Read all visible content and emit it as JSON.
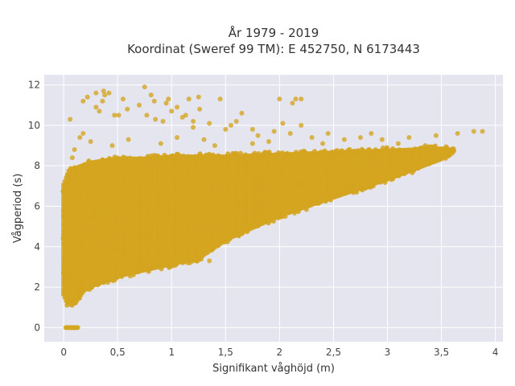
{
  "chart_data": {
    "type": "scatter",
    "title_lines": [
      "År 1979 - 2019",
      "Koordinat (Sweref 99 TM): E 452750, N 6173443"
    ],
    "xlabel": "Signifikant våghöjd (m)",
    "ylabel": "Vågperiod (s)",
    "xlim": [
      -0.18,
      4.07
    ],
    "ylim": [
      -0.7,
      12.5
    ],
    "x_ticks": [
      0,
      0.5,
      1,
      1.5,
      2,
      2.5,
      3,
      3.5,
      4
    ],
    "x_tick_labels": [
      "0",
      "0,5",
      "1",
      "1,5",
      "2",
      "2,5",
      "3",
      "3,5",
      "4"
    ],
    "y_ticks": [
      0,
      2,
      4,
      6,
      8,
      10,
      12
    ],
    "y_tick_labels": [
      "0",
      "2",
      "4",
      "6",
      "8",
      "10",
      "12"
    ],
    "grid": true,
    "marker_color": "#D4A520",
    "plot_background": "#E5E5EF",
    "grid_color": "#FFFFFF",
    "envelope_lower": [
      [
        0.0,
        1.5
      ],
      [
        0.03,
        1.1
      ],
      [
        0.1,
        1.05
      ],
      [
        0.2,
        1.8
      ],
      [
        0.35,
        2.1
      ],
      [
        0.5,
        2.4
      ],
      [
        0.75,
        2.7
      ],
      [
        1.0,
        3.0
      ],
      [
        1.25,
        3.3
      ],
      [
        1.5,
        4.2
      ],
      [
        2.0,
        5.4
      ],
      [
        2.5,
        6.3
      ],
      [
        3.0,
        7.2
      ],
      [
        3.5,
        8.2
      ],
      [
        3.62,
        8.7
      ]
    ],
    "envelope_upper": [
      [
        0.0,
        7.2
      ],
      [
        0.05,
        7.9
      ],
      [
        0.25,
        8.3
      ],
      [
        0.5,
        8.5
      ],
      [
        0.75,
        8.5
      ],
      [
        1.0,
        8.6
      ],
      [
        1.25,
        8.6
      ],
      [
        1.5,
        8.6
      ],
      [
        2.0,
        8.7
      ],
      [
        2.5,
        8.8
      ],
      [
        3.0,
        8.9
      ],
      [
        3.5,
        9.0
      ],
      [
        3.62,
        8.9
      ]
    ],
    "outliers": [
      {
        "x": 0.37,
        "y": 11.7
      },
      {
        "x": 0.3,
        "y": 11.6
      },
      {
        "x": 0.38,
        "y": 11.5
      },
      {
        "x": 0.42,
        "y": 11.6
      },
      {
        "x": 0.22,
        "y": 11.4
      },
      {
        "x": 0.36,
        "y": 11.2
      },
      {
        "x": 0.55,
        "y": 11.3
      },
      {
        "x": 0.18,
        "y": 11.2
      },
      {
        "x": 0.75,
        "y": 11.9
      },
      {
        "x": 0.81,
        "y": 11.5
      },
      {
        "x": 0.84,
        "y": 11.2
      },
      {
        "x": 0.7,
        "y": 11.0
      },
      {
        "x": 0.97,
        "y": 11.3
      },
      {
        "x": 0.95,
        "y": 11.1
      },
      {
        "x": 1.0,
        "y": 10.7
      },
      {
        "x": 1.05,
        "y": 10.9
      },
      {
        "x": 0.59,
        "y": 10.8
      },
      {
        "x": 0.51,
        "y": 10.5
      },
      {
        "x": 0.47,
        "y": 10.5
      },
      {
        "x": 0.33,
        "y": 10.7
      },
      {
        "x": 0.3,
        "y": 10.9
      },
      {
        "x": 0.06,
        "y": 10.3
      },
      {
        "x": 0.77,
        "y": 10.5
      },
      {
        "x": 0.85,
        "y": 10.3
      },
      {
        "x": 0.92,
        "y": 10.2
      },
      {
        "x": 1.1,
        "y": 10.4
      },
      {
        "x": 1.13,
        "y": 10.5
      },
      {
        "x": 1.2,
        "y": 10.2
      },
      {
        "x": 1.16,
        "y": 11.3
      },
      {
        "x": 1.25,
        "y": 11.4
      },
      {
        "x": 1.45,
        "y": 11.3
      },
      {
        "x": 1.26,
        "y": 10.8
      },
      {
        "x": 1.2,
        "y": 9.9
      },
      {
        "x": 1.35,
        "y": 10.1
      },
      {
        "x": 1.5,
        "y": 9.8
      },
      {
        "x": 1.6,
        "y": 10.2
      },
      {
        "x": 1.65,
        "y": 10.6
      },
      {
        "x": 1.55,
        "y": 10.0
      },
      {
        "x": 1.75,
        "y": 9.8
      },
      {
        "x": 1.8,
        "y": 9.5
      },
      {
        "x": 2.0,
        "y": 11.3
      },
      {
        "x": 2.15,
        "y": 11.3
      },
      {
        "x": 2.12,
        "y": 11.1
      },
      {
        "x": 2.2,
        "y": 11.3
      },
      {
        "x": 1.95,
        "y": 9.7
      },
      {
        "x": 2.03,
        "y": 10.1
      },
      {
        "x": 2.2,
        "y": 10.0
      },
      {
        "x": 2.1,
        "y": 9.6
      },
      {
        "x": 2.3,
        "y": 9.4
      },
      {
        "x": 2.45,
        "y": 9.6
      },
      {
        "x": 2.6,
        "y": 9.3
      },
      {
        "x": 2.75,
        "y": 9.4
      },
      {
        "x": 2.85,
        "y": 9.6
      },
      {
        "x": 2.95,
        "y": 9.3
      },
      {
        "x": 3.2,
        "y": 9.4
      },
      {
        "x": 3.1,
        "y": 9.1
      },
      {
        "x": 3.45,
        "y": 9.5
      },
      {
        "x": 3.65,
        "y": 9.6
      },
      {
        "x": 3.8,
        "y": 9.7
      },
      {
        "x": 3.88,
        "y": 9.7
      },
      {
        "x": 3.35,
        "y": 9.0
      },
      {
        "x": 3.55,
        "y": 8.9
      },
      {
        "x": 3.4,
        "y": 8.5
      },
      {
        "x": 3.3,
        "y": 8.3
      },
      {
        "x": 3.15,
        "y": 8.1
      },
      {
        "x": 2.95,
        "y": 8.0
      },
      {
        "x": 1.75,
        "y": 9.1
      },
      {
        "x": 1.9,
        "y": 9.2
      },
      {
        "x": 0.1,
        "y": 8.8
      },
      {
        "x": 0.08,
        "y": 8.4
      },
      {
        "x": 0.15,
        "y": 9.4
      },
      {
        "x": 0.18,
        "y": 9.6
      },
      {
        "x": 0.25,
        "y": 9.2
      },
      {
        "x": 0.45,
        "y": 9.0
      },
      {
        "x": 0.6,
        "y": 9.3
      },
      {
        "x": 0.9,
        "y": 9.1
      },
      {
        "x": 1.05,
        "y": 9.4
      },
      {
        "x": 1.3,
        "y": 9.3
      },
      {
        "x": 1.4,
        "y": 9.0
      },
      {
        "x": 2.4,
        "y": 9.1
      },
      {
        "x": 1.35,
        "y": 3.3
      },
      {
        "x": 1.28,
        "y": 3.5
      },
      {
        "x": 1.2,
        "y": 3.6
      },
      {
        "x": 1.1,
        "y": 3.4
      },
      {
        "x": 1.15,
        "y": 3.2
      }
    ],
    "zero_cluster": {
      "x_min": 0.02,
      "x_max": 0.13,
      "y": 0
    }
  }
}
